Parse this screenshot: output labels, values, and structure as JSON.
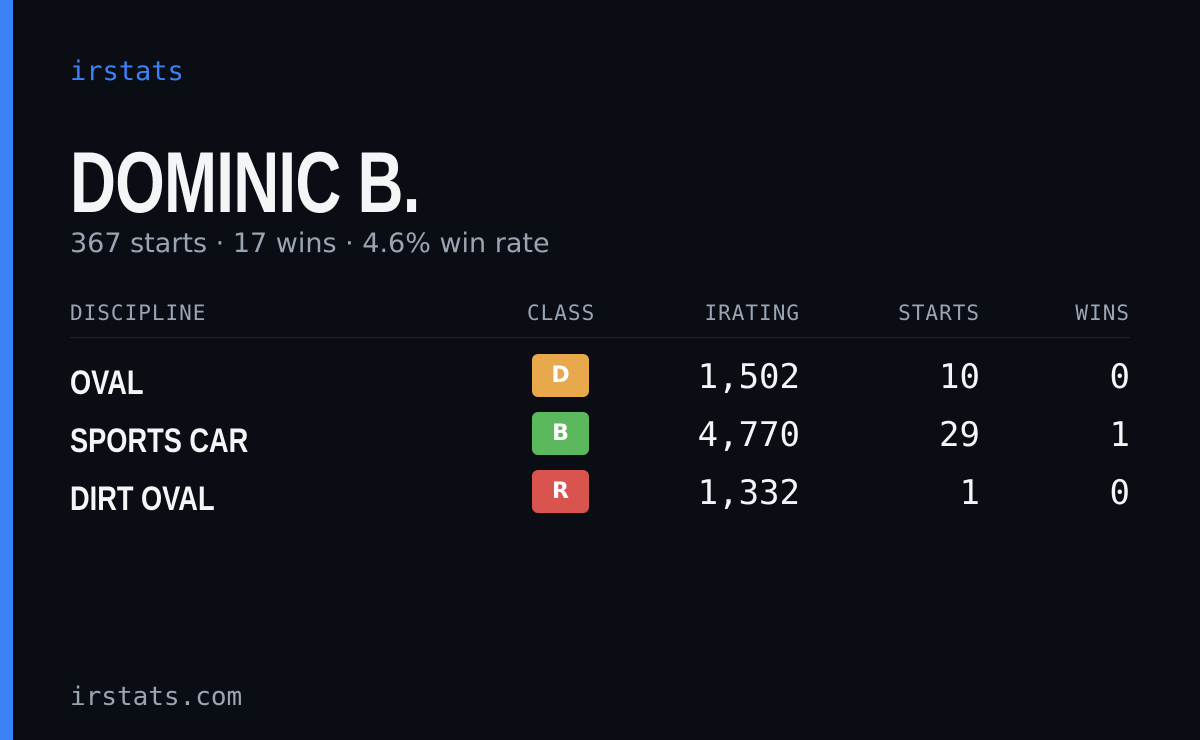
{
  "brand": "irstats",
  "player": {
    "name": "DOMINIC B.",
    "summary": "367 starts · 17 wins · 4.6% win rate"
  },
  "table": {
    "columns": [
      "DISCIPLINE",
      "CLASS",
      "IRATING",
      "STARTS",
      "WINS"
    ],
    "rows": [
      [
        "OVAL",
        "D",
        "1,502",
        "10",
        "0"
      ],
      [
        "SPORTS CAR",
        "B",
        "4,770",
        "29",
        "1"
      ],
      [
        "DIRT OVAL",
        "R",
        "1,332",
        "1",
        "0"
      ]
    ]
  },
  "footer": {
    "url": "irstats.com"
  }
}
